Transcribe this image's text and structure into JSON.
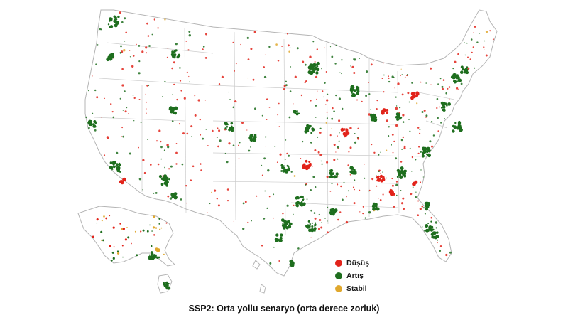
{
  "caption": "SSP2: Orta yollu senaryo (orta derece zorluk)",
  "legend": [
    {
      "label": "Düşüş",
      "color": "#e2231a"
    },
    {
      "label": "Artış",
      "color": "#1e6e1e"
    },
    {
      "label": "Stabil",
      "color": "#e0a82e"
    }
  ],
  "colors": {
    "land": "#ffffff",
    "border": "#c8c8c8",
    "outline": "#b0b0b0"
  }
}
